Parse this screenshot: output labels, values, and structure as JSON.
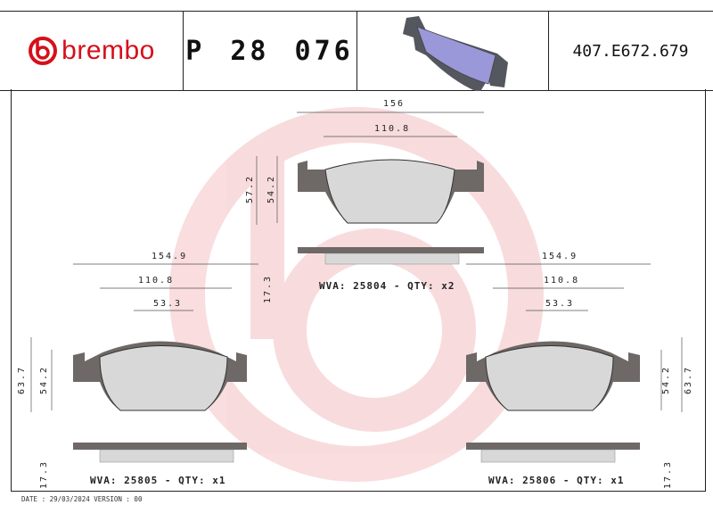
{
  "header": {
    "brand": "brembo",
    "part_number": "P 28 076",
    "reference": "407.E672.679"
  },
  "colors": {
    "brand_red": "#d5101a",
    "backing_plate": "#6e6866",
    "friction": "#d8d8d8",
    "preview_pad": "#9a98d8"
  },
  "pad_top": {
    "width_total": "156",
    "width_friction": "110.8",
    "height_total": "57.2",
    "height_friction": "54.2",
    "thickness": "17.3",
    "wva": "WVA: 25804 - QTY: x2"
  },
  "pad_left": {
    "width_total": "154.9",
    "width_friction": "110.8",
    "width_center": "53.3",
    "height_total": "63.7",
    "height_friction": "54.2",
    "thickness": "17.3",
    "wva": "WVA: 25805 - QTY: x1"
  },
  "pad_right": {
    "width_total": "154.9",
    "width_friction": "110.8",
    "width_center": "53.3",
    "height_total": "63.7",
    "height_friction": "54.2",
    "thickness": "17.3",
    "wva": "WVA: 25806 - QTY: x1"
  },
  "footer": {
    "date": "DATE : 29/03/2024 VERSION : 00"
  }
}
